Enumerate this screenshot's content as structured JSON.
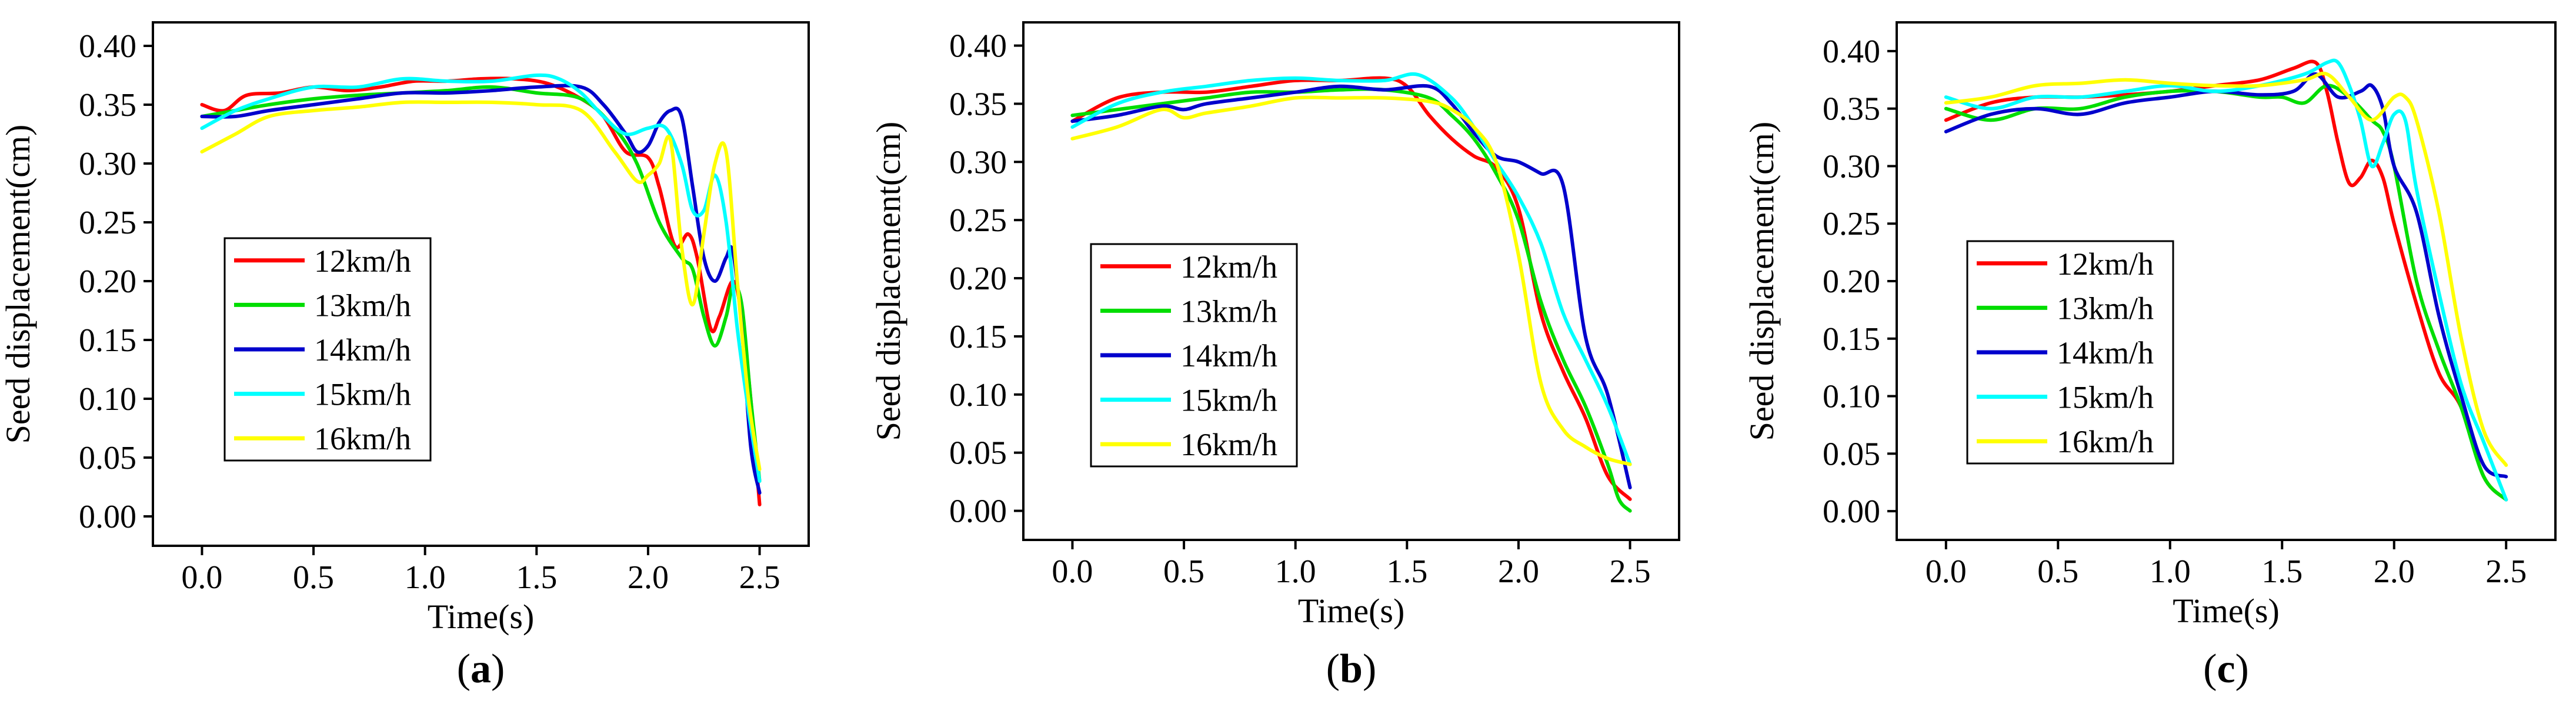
{
  "chart_data": [
    {
      "type": "line",
      "panel_label": "a",
      "xlabel": "Time(s)",
      "ylabel": "Seed displacement(cm)",
      "xlim": [
        -0.22,
        2.72
      ],
      "ylim": [
        -0.025,
        0.42
      ],
      "xticks": [
        "0.0",
        "0.5",
        "1.0",
        "1.5",
        "2.0",
        "2.5"
      ],
      "yticks": [
        "0.00",
        "0.05",
        "0.10",
        "0.15",
        "0.20",
        "0.25",
        "0.30",
        "0.35",
        "0.40"
      ],
      "series": [
        {
          "name": "12km/h",
          "color": "#ff0000",
          "x": [
            0,
            0.1,
            0.2,
            0.35,
            0.5,
            0.65,
            0.8,
            0.95,
            1.1,
            1.25,
            1.4,
            1.55,
            1.7,
            1.8,
            1.9,
            2.0,
            2.05,
            2.12,
            2.18,
            2.22,
            2.28,
            2.32,
            2.38,
            2.42,
            2.46,
            2.5
          ],
          "y": [
            0.35,
            0.345,
            0.358,
            0.36,
            0.365,
            0.362,
            0.365,
            0.37,
            0.37,
            0.372,
            0.372,
            0.368,
            0.355,
            0.34,
            0.31,
            0.305,
            0.28,
            0.23,
            0.24,
            0.22,
            0.16,
            0.17,
            0.2,
            0.17,
            0.1,
            0.01
          ]
        },
        {
          "name": "13km/h",
          "color": "#00dd00",
          "x": [
            0,
            0.15,
            0.3,
            0.5,
            0.7,
            0.9,
            1.1,
            1.3,
            1.5,
            1.7,
            1.85,
            1.95,
            2.05,
            2.15,
            2.2,
            2.25,
            2.3,
            2.35,
            2.38,
            2.42,
            2.46,
            2.5
          ],
          "y": [
            0.34,
            0.345,
            0.35,
            0.355,
            0.358,
            0.36,
            0.362,
            0.365,
            0.36,
            0.355,
            0.33,
            0.3,
            0.25,
            0.22,
            0.21,
            0.17,
            0.145,
            0.17,
            0.195,
            0.18,
            0.1,
            0.03
          ]
        },
        {
          "name": "14km/h",
          "color": "#0000cc",
          "x": [
            0,
            0.15,
            0.3,
            0.5,
            0.7,
            0.9,
            1.1,
            1.3,
            1.5,
            1.7,
            1.8,
            1.9,
            1.95,
            2.0,
            2.05,
            2.1,
            2.15,
            2.2,
            2.25,
            2.3,
            2.35,
            2.38,
            2.42,
            2.46,
            2.5
          ],
          "y": [
            0.34,
            0.34,
            0.345,
            0.35,
            0.355,
            0.36,
            0.36,
            0.362,
            0.365,
            0.365,
            0.35,
            0.325,
            0.31,
            0.315,
            0.335,
            0.345,
            0.34,
            0.28,
            0.22,
            0.2,
            0.22,
            0.225,
            0.16,
            0.06,
            0.02
          ]
        },
        {
          "name": "15km/h",
          "color": "#00ffff",
          "x": [
            0,
            0.15,
            0.3,
            0.5,
            0.7,
            0.9,
            1.1,
            1.3,
            1.5,
            1.6,
            1.7,
            1.8,
            1.9,
            2.0,
            2.08,
            2.15,
            2.2,
            2.25,
            2.3,
            2.35,
            2.4,
            2.45,
            2.5
          ],
          "y": [
            0.33,
            0.345,
            0.355,
            0.365,
            0.365,
            0.372,
            0.37,
            0.37,
            0.375,
            0.372,
            0.36,
            0.34,
            0.325,
            0.33,
            0.33,
            0.3,
            0.26,
            0.26,
            0.29,
            0.25,
            0.16,
            0.09,
            0.03
          ]
        },
        {
          "name": "16km/h",
          "color": "#ffff00",
          "x": [
            0,
            0.15,
            0.3,
            0.5,
            0.7,
            0.9,
            1.1,
            1.3,
            1.5,
            1.7,
            1.85,
            1.95,
            2.0,
            2.05,
            2.1,
            2.15,
            2.2,
            2.25,
            2.3,
            2.35,
            2.4,
            2.45,
            2.5
          ],
          "y": [
            0.31,
            0.325,
            0.34,
            0.345,
            0.348,
            0.352,
            0.352,
            0.352,
            0.35,
            0.345,
            0.31,
            0.285,
            0.29,
            0.3,
            0.32,
            0.23,
            0.18,
            0.24,
            0.3,
            0.31,
            0.2,
            0.1,
            0.04
          ]
        }
      ]
    },
    {
      "type": "line",
      "panel_label": "b",
      "xlabel": "Time(s)",
      "ylabel": "Seed displacement(cm)",
      "xlim": [
        -0.22,
        2.72
      ],
      "ylim": [
        -0.025,
        0.42
      ],
      "xticks": [
        "0.0",
        "0.5",
        "1.0",
        "1.5",
        "2.0",
        "2.5"
      ],
      "yticks": [
        "0.00",
        "0.05",
        "0.10",
        "0.15",
        "0.20",
        "0.25",
        "0.30",
        "0.35",
        "0.40"
      ],
      "series": [
        {
          "name": "12km/h",
          "color": "#ff0000",
          "x": [
            0,
            0.2,
            0.4,
            0.6,
            0.8,
            1.0,
            1.2,
            1.4,
            1.5,
            1.6,
            1.7,
            1.8,
            1.9,
            2.0,
            2.1,
            2.2,
            2.3,
            2.4,
            2.5
          ],
          "y": [
            0.335,
            0.355,
            0.36,
            0.36,
            0.365,
            0.37,
            0.37,
            0.372,
            0.365,
            0.34,
            0.32,
            0.305,
            0.295,
            0.26,
            0.17,
            0.12,
            0.08,
            0.03,
            0.01
          ]
        },
        {
          "name": "13km/h",
          "color": "#00dd00",
          "x": [
            0,
            0.2,
            0.4,
            0.6,
            0.8,
            1.0,
            1.2,
            1.4,
            1.6,
            1.7,
            1.8,
            1.9,
            2.0,
            2.1,
            2.2,
            2.3,
            2.4,
            2.45,
            2.5
          ],
          "y": [
            0.34,
            0.345,
            0.35,
            0.355,
            0.36,
            0.36,
            0.362,
            0.362,
            0.355,
            0.34,
            0.32,
            0.29,
            0.25,
            0.18,
            0.13,
            0.09,
            0.04,
            0.01,
            0.0
          ]
        },
        {
          "name": "14km/h",
          "color": "#0000cc",
          "x": [
            0,
            0.2,
            0.4,
            0.5,
            0.6,
            0.8,
            1.0,
            1.2,
            1.4,
            1.6,
            1.7,
            1.8,
            1.9,
            2.0,
            2.1,
            2.2,
            2.3,
            2.4,
            2.5
          ],
          "y": [
            0.335,
            0.34,
            0.348,
            0.345,
            0.35,
            0.355,
            0.36,
            0.365,
            0.362,
            0.365,
            0.35,
            0.325,
            0.305,
            0.3,
            0.29,
            0.28,
            0.15,
            0.1,
            0.02
          ]
        },
        {
          "name": "15km/h",
          "color": "#00ffff",
          "x": [
            0,
            0.2,
            0.4,
            0.6,
            0.8,
            1.0,
            1.2,
            1.4,
            1.55,
            1.7,
            1.8,
            1.9,
            2.0,
            2.1,
            2.2,
            2.3,
            2.4,
            2.5
          ],
          "y": [
            0.33,
            0.35,
            0.36,
            0.365,
            0.37,
            0.372,
            0.37,
            0.37,
            0.375,
            0.355,
            0.33,
            0.3,
            0.27,
            0.23,
            0.17,
            0.13,
            0.09,
            0.04
          ]
        },
        {
          "name": "16km/h",
          "color": "#ffff00",
          "x": [
            0,
            0.2,
            0.4,
            0.5,
            0.6,
            0.8,
            1.0,
            1.2,
            1.4,
            1.6,
            1.7,
            1.8,
            1.9,
            2.0,
            2.1,
            2.2,
            2.3,
            2.4,
            2.5
          ],
          "y": [
            0.32,
            0.33,
            0.345,
            0.338,
            0.342,
            0.348,
            0.355,
            0.355,
            0.355,
            0.352,
            0.345,
            0.33,
            0.3,
            0.22,
            0.11,
            0.07,
            0.055,
            0.045,
            0.04
          ]
        }
      ]
    },
    {
      "type": "line",
      "panel_label": "c",
      "xlabel": "Time(s)",
      "ylabel": "Seed displacement(cm)",
      "xlim": [
        -0.22,
        2.72
      ],
      "ylim": [
        -0.025,
        0.425
      ],
      "xticks": [
        "0.0",
        "0.5",
        "1.0",
        "1.5",
        "2.0",
        "2.5"
      ],
      "yticks": [
        "0.00",
        "0.05",
        "0.10",
        "0.15",
        "0.20",
        "0.25",
        "0.30",
        "0.35",
        "0.40"
      ],
      "series": [
        {
          "name": "12km/h",
          "color": "#ff0000",
          "x": [
            0,
            0.2,
            0.4,
            0.6,
            0.8,
            1.0,
            1.2,
            1.4,
            1.55,
            1.65,
            1.7,
            1.75,
            1.8,
            1.85,
            1.9,
            1.95,
            2.0,
            2.1,
            2.2,
            2.3,
            2.4,
            2.5
          ],
          "y": [
            0.34,
            0.355,
            0.36,
            0.36,
            0.362,
            0.365,
            0.37,
            0.375,
            0.385,
            0.39,
            0.365,
            0.32,
            0.285,
            0.29,
            0.305,
            0.29,
            0.25,
            0.18,
            0.12,
            0.09,
            0.03,
            0.01
          ]
        },
        {
          "name": "13km/h",
          "color": "#00dd00",
          "x": [
            0,
            0.2,
            0.4,
            0.6,
            0.8,
            1.0,
            1.2,
            1.4,
            1.5,
            1.6,
            1.7,
            1.8,
            1.9,
            1.95,
            2.0,
            2.1,
            2.2,
            2.3,
            2.4,
            2.5
          ],
          "y": [
            0.35,
            0.34,
            0.35,
            0.35,
            0.36,
            0.365,
            0.365,
            0.36,
            0.36,
            0.355,
            0.37,
            0.36,
            0.34,
            0.33,
            0.3,
            0.2,
            0.14,
            0.09,
            0.03,
            0.01
          ]
        },
        {
          "name": "14km/h",
          "color": "#0000cc",
          "x": [
            0,
            0.2,
            0.4,
            0.6,
            0.8,
            1.0,
            1.2,
            1.4,
            1.55,
            1.65,
            1.75,
            1.85,
            1.9,
            1.95,
            2.0,
            2.1,
            2.2,
            2.3,
            2.4,
            2.5
          ],
          "y": [
            0.33,
            0.345,
            0.35,
            0.345,
            0.355,
            0.36,
            0.365,
            0.362,
            0.365,
            0.38,
            0.36,
            0.365,
            0.37,
            0.35,
            0.3,
            0.26,
            0.17,
            0.1,
            0.04,
            0.03
          ]
        },
        {
          "name": "15km/h",
          "color": "#00ffff",
          "x": [
            0,
            0.2,
            0.4,
            0.6,
            0.8,
            1.0,
            1.2,
            1.4,
            1.6,
            1.7,
            1.75,
            1.8,
            1.85,
            1.9,
            1.95,
            2.0,
            2.05,
            2.1,
            2.2,
            2.3,
            2.4,
            2.5
          ],
          "y": [
            0.36,
            0.35,
            0.36,
            0.36,
            0.365,
            0.37,
            0.365,
            0.37,
            0.38,
            0.39,
            0.39,
            0.37,
            0.34,
            0.3,
            0.32,
            0.345,
            0.34,
            0.28,
            0.19,
            0.11,
            0.06,
            0.01
          ]
        },
        {
          "name": "16km/h",
          "color": "#ffff00",
          "x": [
            0,
            0.2,
            0.4,
            0.6,
            0.8,
            1.0,
            1.2,
            1.4,
            1.6,
            1.7,
            1.8,
            1.9,
            2.0,
            2.05,
            2.1,
            2.2,
            2.3,
            2.4,
            2.5
          ],
          "y": [
            0.355,
            0.36,
            0.37,
            0.372,
            0.375,
            0.372,
            0.37,
            0.37,
            0.375,
            0.38,
            0.36,
            0.34,
            0.36,
            0.36,
            0.34,
            0.26,
            0.15,
            0.07,
            0.04
          ]
        }
      ]
    }
  ]
}
